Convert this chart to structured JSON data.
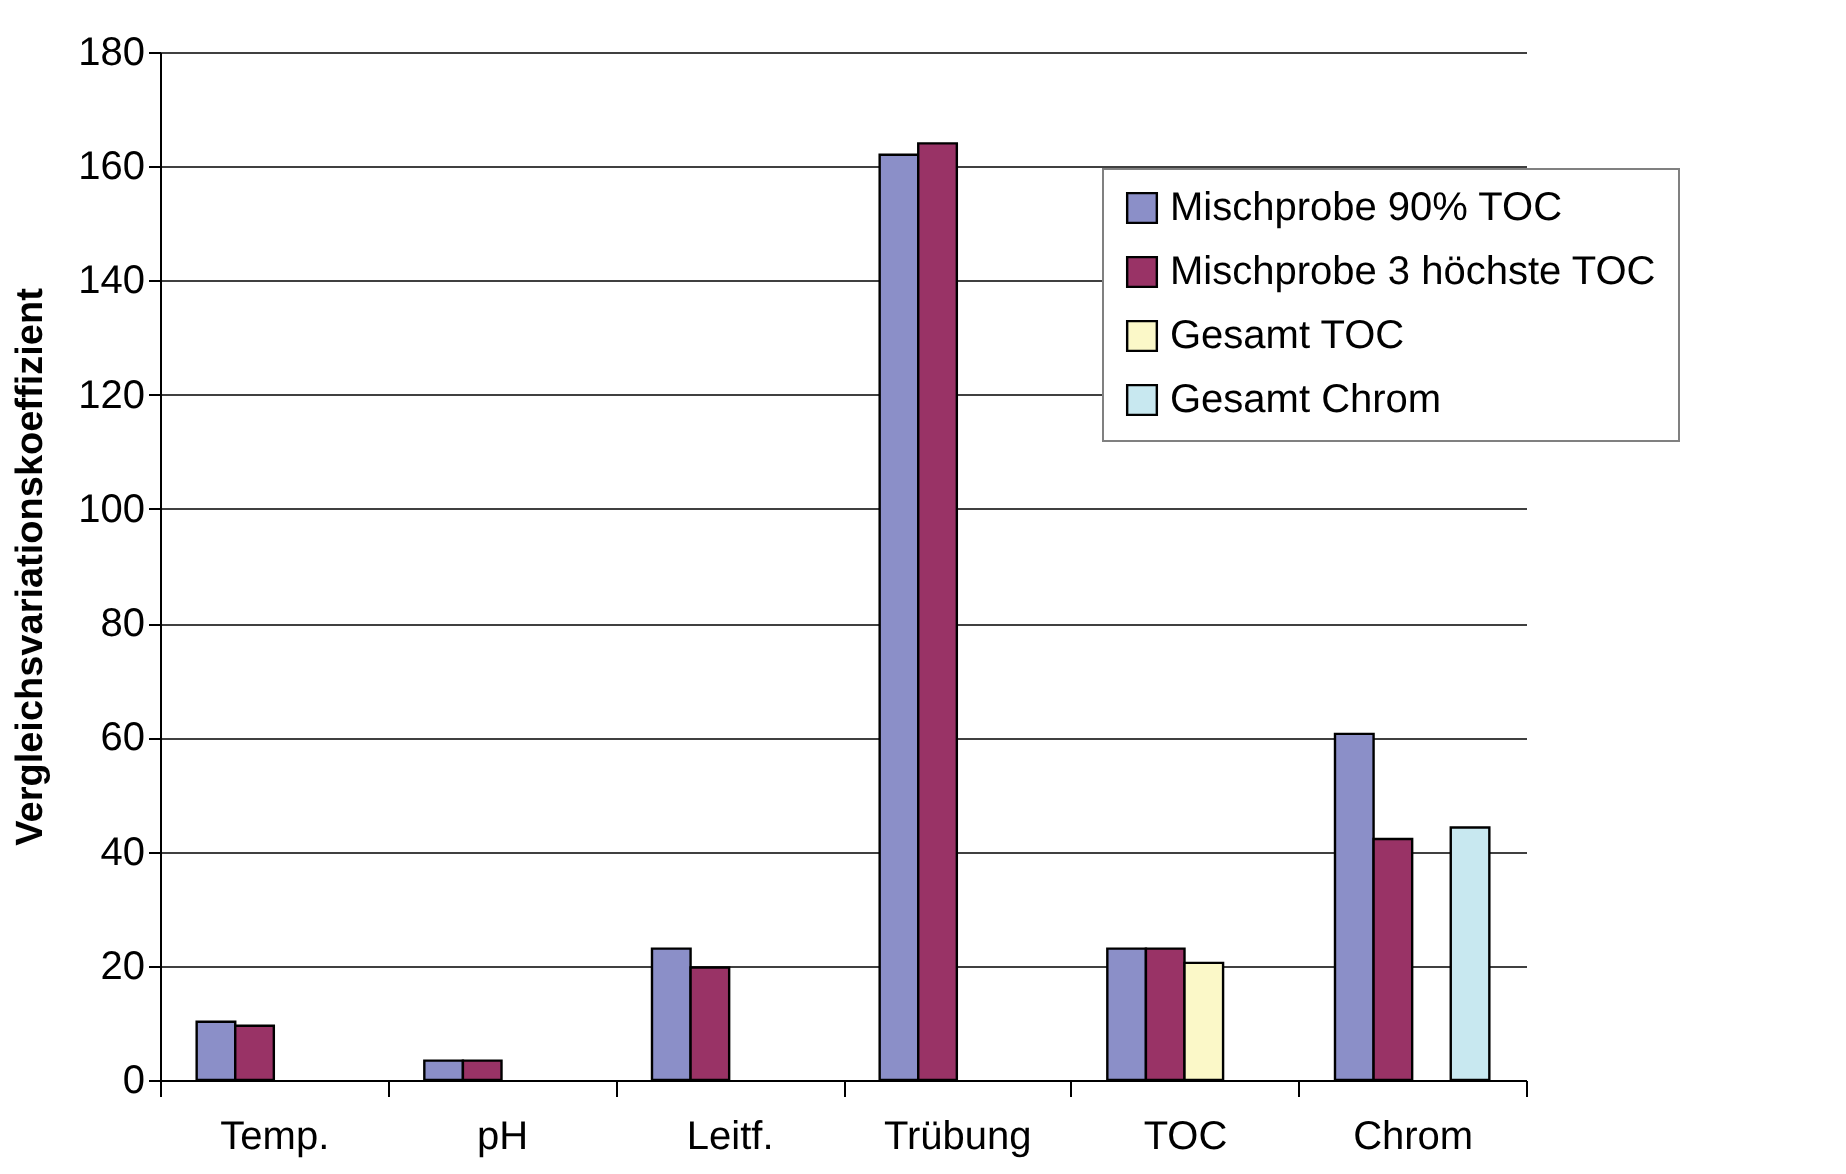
{
  "chart_data": {
    "type": "bar",
    "ylabel": "Vergleichsvariationskoeffizient",
    "categories": [
      "Temp.",
      "pH",
      "Leitf.",
      "Trübung",
      "TOC",
      "Chrom"
    ],
    "series": [
      {
        "name": "Mischprobe 90% TOC",
        "color": "#8b8fc8",
        "values": [
          10.2,
          3.4,
          23,
          162,
          23,
          60.6
        ]
      },
      {
        "name": "Mischprobe 3 höchste TOC",
        "color": "#993366",
        "values": [
          9.5,
          3.4,
          19.7,
          164,
          23,
          42.2
        ]
      },
      {
        "name": "Gesamt TOC",
        "color": "#fbf8c8",
        "values": [
          null,
          null,
          null,
          null,
          20.5,
          null
        ]
      },
      {
        "name": "Gesamt Chrom",
        "color": "#c8e8f0",
        "values": [
          null,
          null,
          null,
          null,
          null,
          44.2
        ]
      }
    ],
    "ylim": [
      0,
      180
    ],
    "yticks": [
      0,
      20,
      40,
      60,
      80,
      100,
      120,
      140,
      160,
      180
    ],
    "grid": "y",
    "legend": "top right"
  }
}
